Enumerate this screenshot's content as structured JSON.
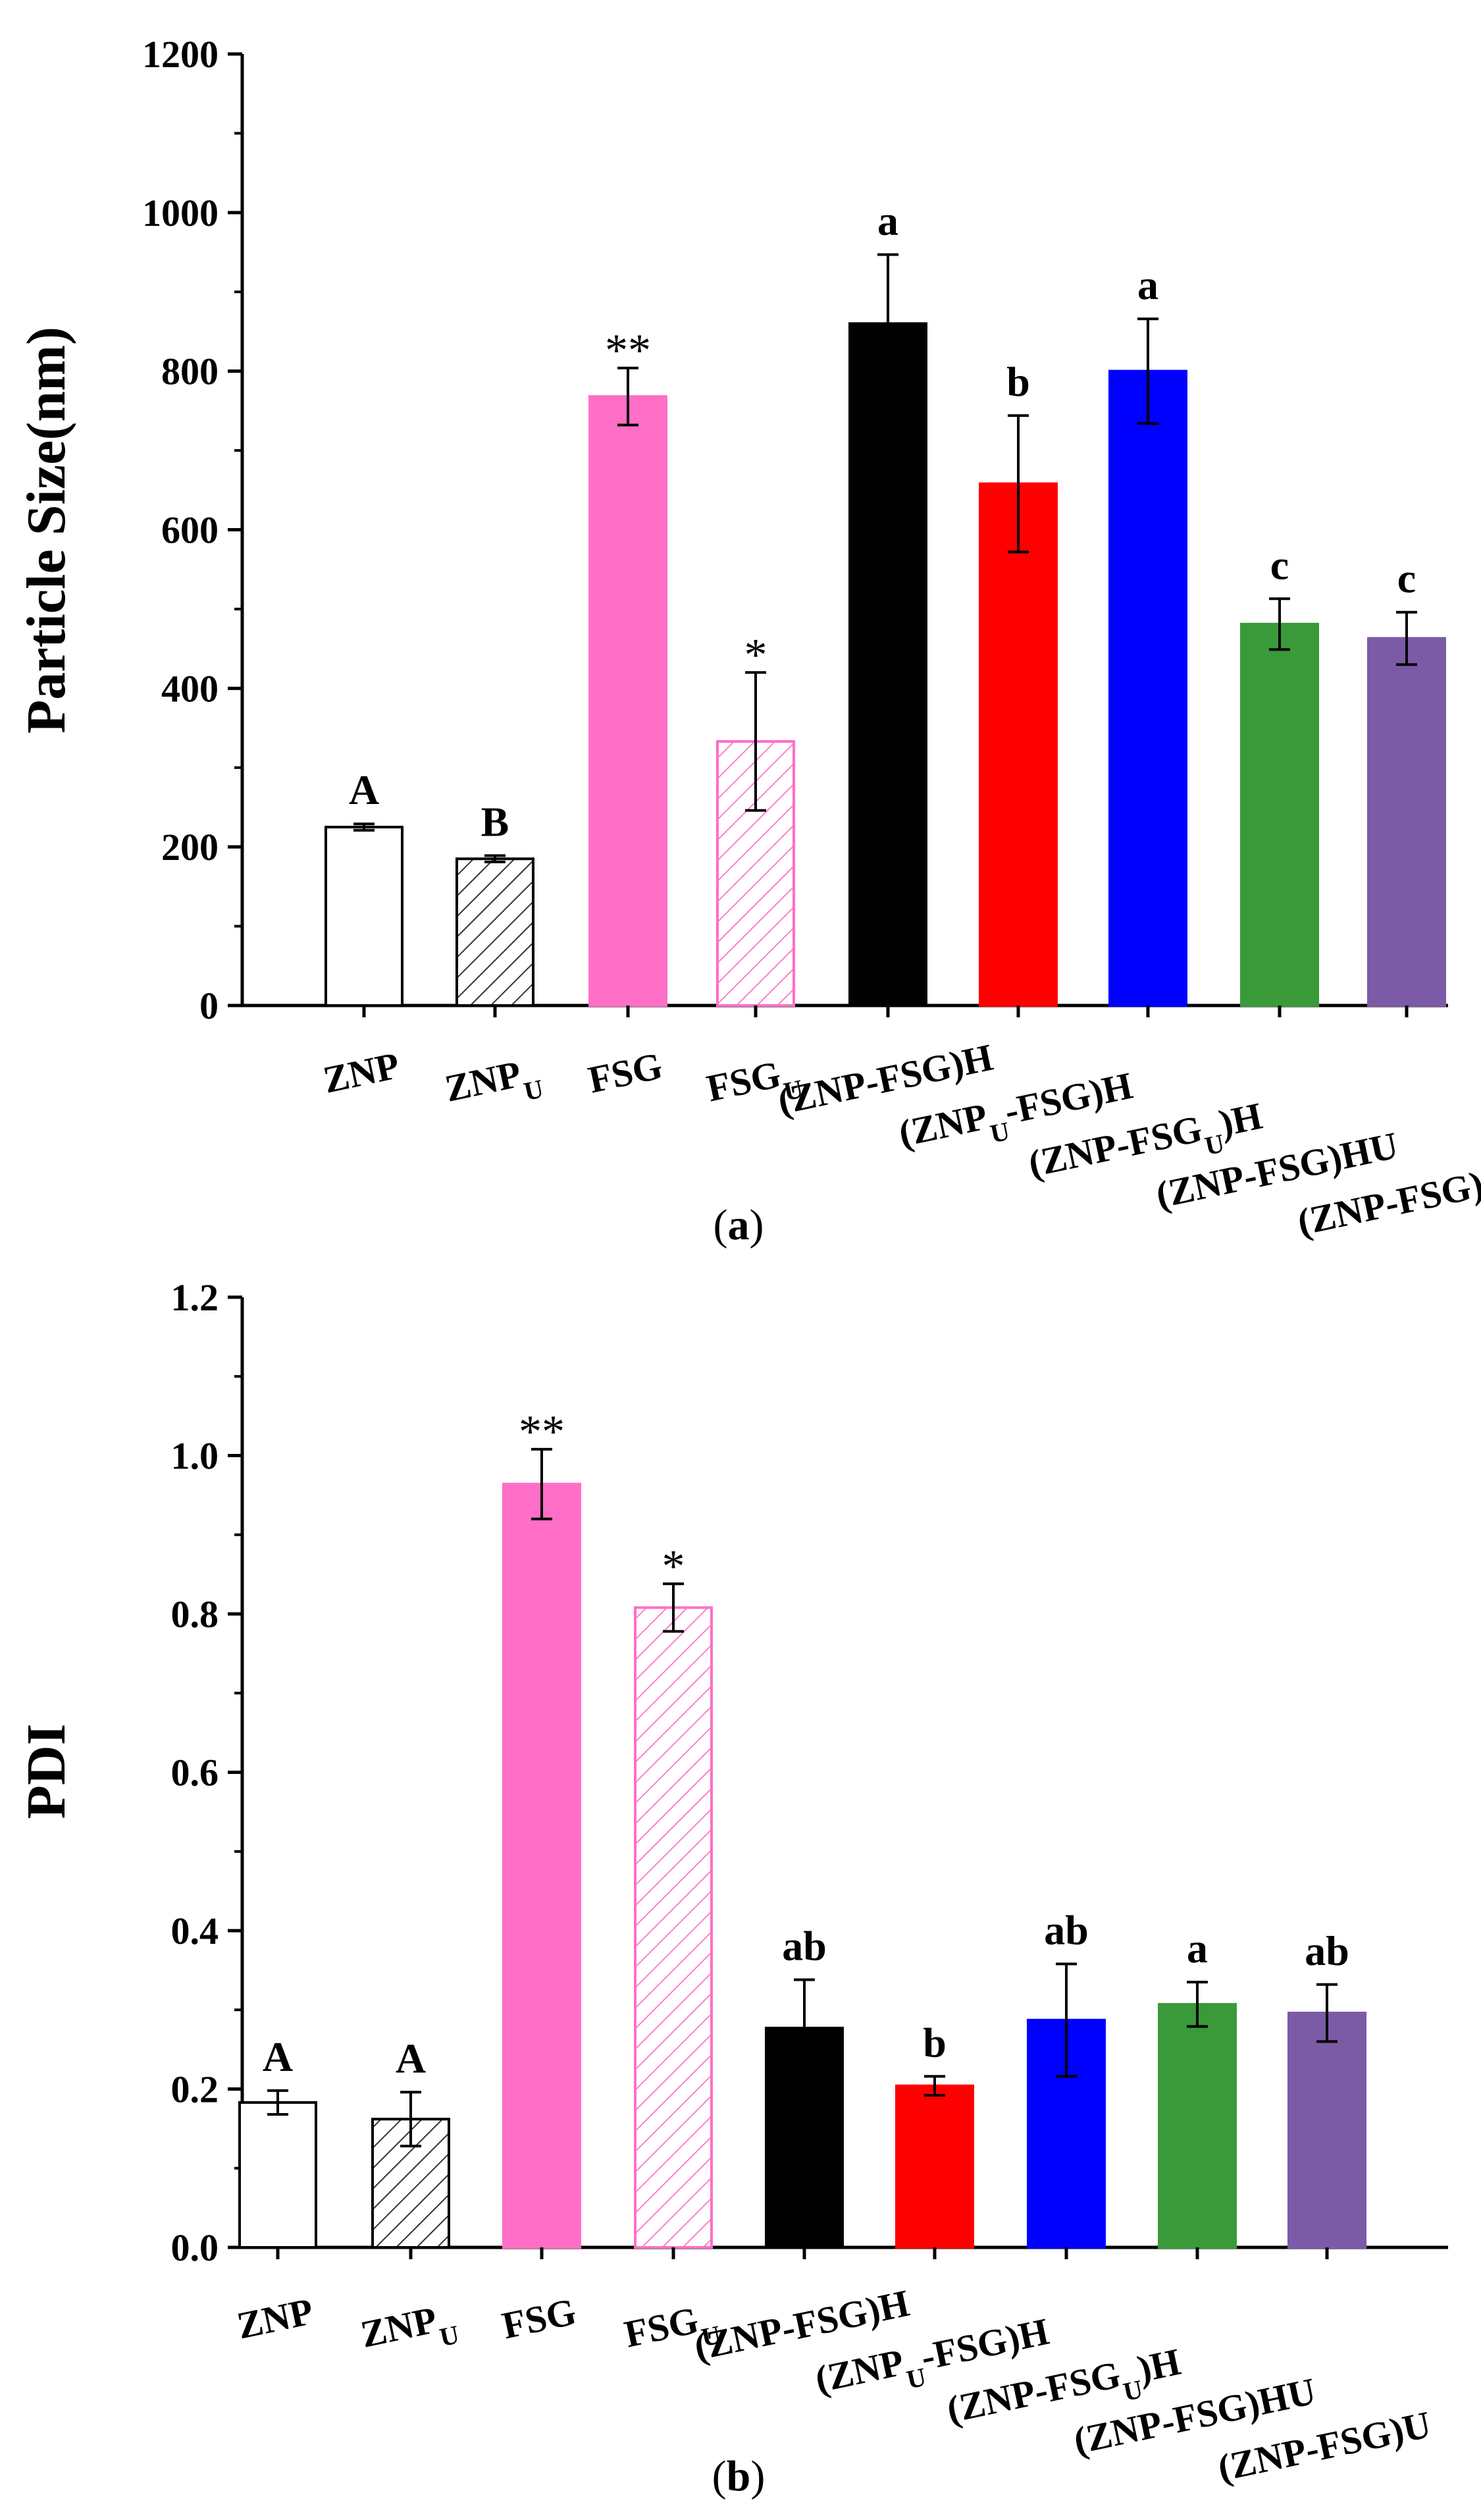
{
  "figure": {
    "colors": {
      "white": "#ffffff",
      "gray_hatch": "#333333",
      "pink": "#ff6ec7",
      "black": "#000000",
      "red": "#ff0000",
      "blue": "#0000ff",
      "green": "#3a9a3a",
      "purple": "#7b5aa6"
    }
  },
  "chart_data": [
    {
      "type": "bar",
      "panel_label": "(a)",
      "panel_letter": "a",
      "ylabel": "Particle Size(nm)",
      "xlabel": "",
      "ylim": [
        0,
        1200
      ],
      "yticks": [
        0,
        200,
        400,
        600,
        800,
        1000,
        1200
      ],
      "yticklabels": [
        "0",
        "200",
        "400",
        "600",
        "800",
        "1000",
        "1200"
      ],
      "categories": [
        {
          "main": "ZNP",
          "sub": "",
          "tail": ""
        },
        {
          "main": "ZNP",
          "sub": "U",
          "tail": ""
        },
        {
          "main": "FSG",
          "sub": "",
          "tail": ""
        },
        {
          "main": "FSG",
          "sub": "U",
          "tail": ""
        },
        {
          "main": "(ZNP-FSG)H",
          "sub": "",
          "tail": ""
        },
        {
          "main": "(ZNP",
          "sub": "U",
          "tail": "-FSG)H"
        },
        {
          "main": "(ZNP-FSG",
          "sub": "U",
          "tail": ")H"
        },
        {
          "main": "(ZNP-FSG)HU",
          "sub": "",
          "tail": ""
        },
        {
          "main": "(ZNP-FSG)U",
          "sub": "",
          "tail": ""
        }
      ],
      "values": [
        225,
        185,
        768,
        333,
        860,
        658,
        800,
        481,
        463
      ],
      "errors": [
        4,
        4,
        36,
        87,
        87,
        86,
        66,
        32,
        33
      ],
      "significance": [
        "A",
        "B",
        "**",
        "*",
        "a",
        "b",
        "a",
        "c",
        "c"
      ],
      "styles": [
        "white",
        "gray_hatch",
        "pink",
        "pink_hatch",
        "black",
        "red",
        "blue",
        "green",
        "purple"
      ]
    },
    {
      "type": "bar",
      "panel_label": "(b)",
      "panel_letter": "b",
      "ylabel": "PDI",
      "xlabel": "",
      "ylim": [
        0,
        1.2
      ],
      "yticks": [
        0,
        0.2,
        0.4,
        0.6,
        0.8,
        1.0,
        1.2
      ],
      "yticklabels": [
        "0.0",
        "0.2",
        "0.4",
        "0.6",
        "0.8",
        "1.0",
        "1.2"
      ],
      "categories": [
        {
          "main": "ZNP",
          "sub": "",
          "tail": ""
        },
        {
          "main": "ZNP",
          "sub": "U",
          "tail": ""
        },
        {
          "main": "FSG",
          "sub": "",
          "tail": ""
        },
        {
          "main": "FSG",
          "sub": "U",
          "tail": ""
        },
        {
          "main": "(ZNP-FSG)H",
          "sub": "",
          "tail": ""
        },
        {
          "main": "(ZNP",
          "sub": "U",
          "tail": "-FSG)H"
        },
        {
          "main": "(ZNP-FSG",
          "sub": "U",
          "tail": ")H"
        },
        {
          "main": "(ZNP-FSG)HU",
          "sub": "",
          "tail": ""
        },
        {
          "main": "(ZNP-FSG)U",
          "sub": "",
          "tail": ""
        }
      ],
      "values": [
        0.183,
        0.162,
        0.964,
        0.808,
        0.277,
        0.204,
        0.287,
        0.307,
        0.296
      ],
      "errors": [
        0.015,
        0.034,
        0.044,
        0.03,
        0.061,
        0.012,
        0.071,
        0.028,
        0.036
      ],
      "significance": [
        "A",
        "A",
        "**",
        "*",
        "ab",
        "b",
        "ab",
        "a",
        "ab"
      ],
      "styles": [
        "white",
        "gray_hatch",
        "pink",
        "pink_hatch",
        "black",
        "red",
        "blue",
        "green",
        "purple"
      ]
    }
  ]
}
